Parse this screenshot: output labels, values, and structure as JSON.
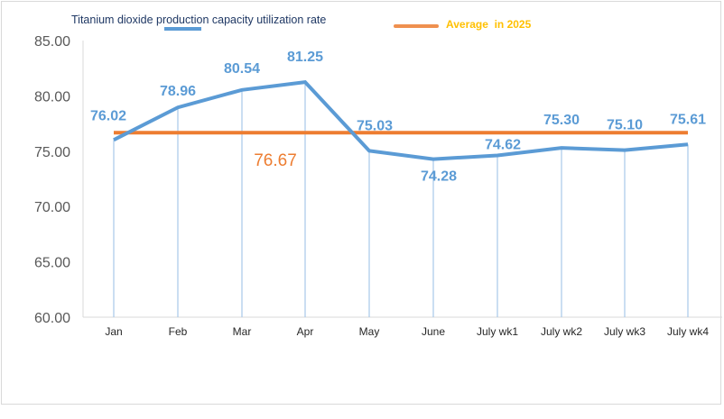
{
  "chart_data": {
    "type": "line",
    "title": "",
    "xlabel": "",
    "ylabel": "",
    "ylim": [
      60,
      85
    ],
    "yticks": [
      "60.00",
      "65.00",
      "70.00",
      "75.00",
      "80.00",
      "85.00"
    ],
    "categories": [
      "Jan",
      "Feb",
      "Mar",
      "Apr",
      "May",
      "June",
      "July wk1",
      "July wk2",
      "July wk3",
      "July wk4"
    ],
    "series": [
      {
        "name": "Titanium dioxide production capacity utilization rate",
        "color": "#5b9bd5",
        "values": [
          76.02,
          78.96,
          80.54,
          81.25,
          75.03,
          74.28,
          74.62,
          75.3,
          75.1,
          75.61
        ],
        "labels": [
          "76.02",
          "78.96",
          "80.54",
          "81.25",
          "75.03",
          "74.28",
          "74.62",
          "75.30",
          "75.10",
          "75.61"
        ]
      },
      {
        "name": "Average  in 2025",
        "color": "#ed7d31",
        "value": 76.67,
        "label": "76.67"
      }
    ],
    "grid": false,
    "legend_position": "top",
    "drop_lines": true
  }
}
